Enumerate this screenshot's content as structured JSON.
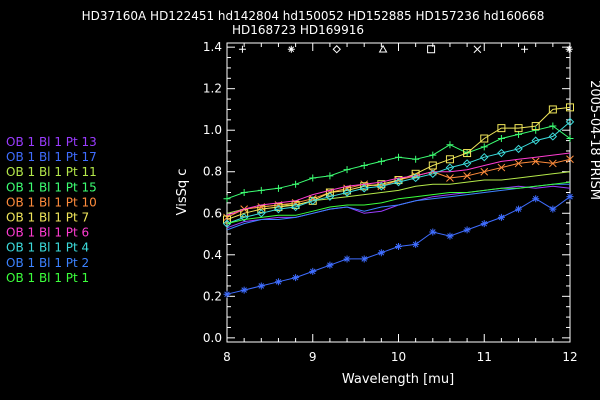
{
  "chart_data": {
    "type": "line",
    "title_lines": [
      "HD37160A HD122451 hd142804 hd150052 HD152885 HD157236 hd160668",
      "HD168723 HD169916"
    ],
    "xlabel": "Wavelength [mu]",
    "ylabel": "VisSq c",
    "side_label": "2005-04-18 PRISM",
    "xlim": [
      8,
      12
    ],
    "ylim": [
      -0.02,
      1.42
    ],
    "xticks": [
      8,
      9,
      10,
      11,
      12
    ],
    "yticks": [
      0.0,
      0.2,
      0.4,
      0.6,
      0.8,
      1.0,
      1.2,
      1.4
    ],
    "ytick_labels": [
      "0.0",
      "0.2",
      "0.4",
      "0.6",
      "0.8",
      "1.0",
      "1.2",
      "1.4"
    ],
    "symbol_legend": {
      "y": 1.39,
      "items": [
        {
          "x": 8.18,
          "symbol": "plus"
        },
        {
          "x": 8.75,
          "symbol": "asterisk"
        },
        {
          "x": 9.28,
          "symbol": "diamond"
        },
        {
          "x": 9.82,
          "symbol": "triangle"
        },
        {
          "x": 10.38,
          "symbol": "square"
        },
        {
          "x": 10.92,
          "symbol": "x"
        },
        {
          "x": 11.47,
          "symbol": "plus"
        },
        {
          "x": 11.99,
          "symbol": "asterisk"
        }
      ]
    },
    "x": [
      8.0,
      8.2,
      8.4,
      8.6,
      8.8,
      9.0,
      9.2,
      9.4,
      9.6,
      9.8,
      10.0,
      10.2,
      10.4,
      10.6,
      10.8,
      11.0,
      11.2,
      11.4,
      11.6,
      11.8,
      12.0
    ],
    "series": [
      {
        "name": "OB 1 Bl 1 Pt 13",
        "color": "#9a3cff",
        "marker": "none",
        "values": [
          0.53,
          0.56,
          0.57,
          0.58,
          0.58,
          0.6,
          0.62,
          0.63,
          0.6,
          0.61,
          0.64,
          0.66,
          0.68,
          0.69,
          0.7,
          0.71,
          0.72,
          0.73,
          0.72,
          0.73,
          0.72
        ]
      },
      {
        "name": "OB 1 Bl 1 Pt 17",
        "color": "#3f6dff",
        "marker": "asterisk",
        "values": [
          0.21,
          0.23,
          0.25,
          0.27,
          0.29,
          0.32,
          0.35,
          0.38,
          0.38,
          0.41,
          0.44,
          0.45,
          0.51,
          0.49,
          0.52,
          0.55,
          0.58,
          0.62,
          0.67,
          0.62,
          0.68
        ]
      },
      {
        "name": "OB 1 Bl 1 Pt 11",
        "color": "#b4e84a",
        "marker": "none",
        "values": [
          0.6,
          0.62,
          0.63,
          0.64,
          0.64,
          0.66,
          0.67,
          0.68,
          0.69,
          0.7,
          0.71,
          0.73,
          0.74,
          0.74,
          0.75,
          0.76,
          0.76,
          0.77,
          0.78,
          0.79,
          0.8
        ]
      },
      {
        "name": "OB 1 Bl 1 Pt 15",
        "color": "#3cff73",
        "marker": "plus",
        "values": [
          0.67,
          0.7,
          0.71,
          0.72,
          0.74,
          0.77,
          0.78,
          0.81,
          0.83,
          0.85,
          0.87,
          0.86,
          0.88,
          0.93,
          0.89,
          0.92,
          0.96,
          0.98,
          1.0,
          1.02,
          0.96
        ]
      },
      {
        "name": "OB 1 Bl 1 Pt 10",
        "color": "#ff8c3c",
        "marker": "x",
        "values": [
          0.58,
          0.62,
          0.63,
          0.64,
          0.65,
          0.67,
          0.7,
          0.72,
          0.74,
          0.73,
          0.76,
          0.78,
          0.8,
          0.77,
          0.78,
          0.8,
          0.82,
          0.84,
          0.85,
          0.84,
          0.86
        ]
      },
      {
        "name": "OB 1 Bl 1 Pt 7",
        "color": "#f0e65a",
        "marker": "square",
        "values": [
          0.57,
          0.6,
          0.62,
          0.63,
          0.64,
          0.66,
          0.7,
          0.71,
          0.73,
          0.74,
          0.76,
          0.79,
          0.83,
          0.86,
          0.89,
          0.96,
          1.01,
          1.01,
          1.02,
          1.1,
          1.11
        ]
      },
      {
        "name": "OB 1 Bl 1 Pt 6",
        "color": "#ff3cd2",
        "marker": "none",
        "values": [
          0.59,
          0.62,
          0.64,
          0.65,
          0.66,
          0.69,
          0.71,
          0.73,
          0.74,
          0.75,
          0.77,
          0.78,
          0.8,
          0.8,
          0.81,
          0.83,
          0.85,
          0.86,
          0.87,
          0.88,
          0.89
        ]
      },
      {
        "name": "OB 1 Bl 1 Pt 4",
        "color": "#3cdcdc",
        "marker": "diamond",
        "values": [
          0.55,
          0.58,
          0.6,
          0.62,
          0.63,
          0.66,
          0.68,
          0.7,
          0.72,
          0.73,
          0.75,
          0.77,
          0.79,
          0.82,
          0.84,
          0.87,
          0.89,
          0.91,
          0.95,
          0.97,
          1.04
        ]
      },
      {
        "name": "OB 1 Bl 1 Pt 2",
        "color": "#3c82ff",
        "marker": "none",
        "values": [
          0.52,
          0.55,
          0.57,
          0.57,
          0.58,
          0.6,
          0.62,
          0.63,
          0.61,
          0.63,
          0.64,
          0.66,
          0.67,
          0.68,
          0.69,
          0.7,
          0.71,
          0.72,
          0.73,
          0.74,
          0.74
        ]
      },
      {
        "name": "OB 1 Bl 1 Pt 1",
        "color": "#3cff3c",
        "marker": "none",
        "values": [
          0.55,
          0.57,
          0.58,
          0.59,
          0.59,
          0.61,
          0.63,
          0.64,
          0.64,
          0.65,
          0.67,
          0.68,
          0.69,
          0.7,
          0.7,
          0.71,
          0.72,
          0.72,
          0.73,
          0.74,
          0.75
        ]
      }
    ]
  }
}
